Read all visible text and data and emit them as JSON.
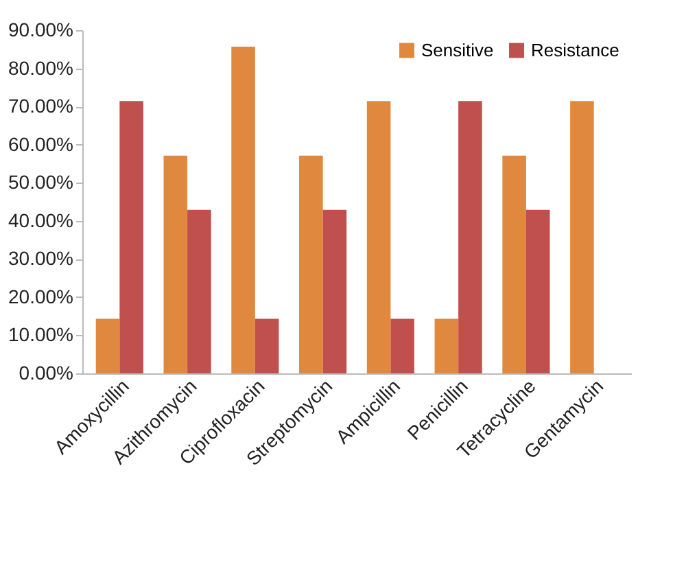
{
  "chart_data": {
    "type": "bar",
    "categories": [
      "Amoxycillin",
      "Azithromycin",
      "Ciprofloxacin",
      "Streptomycin",
      "Ampicillin",
      "Penicillin",
      "Tetracycline",
      "Gentamycin"
    ],
    "series": [
      {
        "name": "Sensitive",
        "color": "#e0893e",
        "values": [
          14.3,
          57.1,
          85.7,
          57.1,
          71.4,
          14.3,
          57.1,
          71.4
        ]
      },
      {
        "name": "Resistance",
        "color": "#c0504d",
        "values": [
          71.4,
          42.9,
          14.3,
          42.9,
          14.3,
          71.4,
          42.9,
          null
        ]
      }
    ],
    "ylim": [
      0,
      90
    ],
    "yticks": [
      {
        "value": 0,
        "label": "0.00%"
      },
      {
        "value": 10,
        "label": "10.00%"
      },
      {
        "value": 20,
        "label": "20.00%"
      },
      {
        "value": 30,
        "label": "30.00%"
      },
      {
        "value": 40,
        "label": "40.00%"
      },
      {
        "value": 50,
        "label": "50.00%"
      },
      {
        "value": 60,
        "label": "60.00%"
      },
      {
        "value": 70,
        "label": "70.00%"
      },
      {
        "value": 80,
        "label": "80.00%"
      },
      {
        "value": 90,
        "label": "90.00%"
      }
    ],
    "grid": false,
    "legend": "top right"
  }
}
